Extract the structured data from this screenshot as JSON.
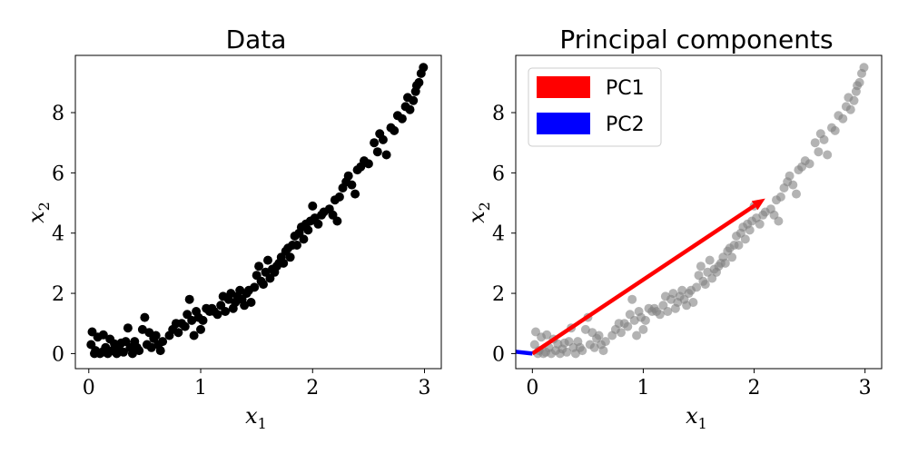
{
  "chart_data": [
    {
      "type": "scatter",
      "title": "Data",
      "xlabel": "x",
      "xlabel_sub": "1",
      "ylabel": "x",
      "ylabel_sub": "2",
      "xlim": [
        -0.12,
        3.15
      ],
      "ylim": [
        -0.5,
        9.9
      ],
      "xticks": [
        0,
        1,
        2,
        3
      ],
      "yticks": [
        0,
        2,
        4,
        6,
        8
      ],
      "grid": false,
      "point_color": "#000000",
      "points": [
        [
          0.02,
          0.3
        ],
        [
          0.03,
          0.72
        ],
        [
          0.05,
          0.0
        ],
        [
          0.06,
          0.1
        ],
        [
          0.08,
          0.55
        ],
        [
          0.1,
          0.0
        ],
        [
          0.12,
          0.05
        ],
        [
          0.13,
          0.62
        ],
        [
          0.15,
          0.2
        ],
        [
          0.17,
          0.0
        ],
        [
          0.19,
          0.48
        ],
        [
          0.21,
          0.1
        ],
        [
          0.23,
          0.32
        ],
        [
          0.25,
          0.0
        ],
        [
          0.27,
          0.15
        ],
        [
          0.29,
          0.35
        ],
        [
          0.31,
          0.05
        ],
        [
          0.33,
          0.4
        ],
        [
          0.35,
          0.85
        ],
        [
          0.37,
          0.2
        ],
        [
          0.39,
          0.0
        ],
        [
          0.41,
          0.4
        ],
        [
          0.43,
          0.2
        ],
        [
          0.45,
          0.1
        ],
        [
          0.48,
          0.8
        ],
        [
          0.5,
          1.2
        ],
        [
          0.52,
          0.3
        ],
        [
          0.54,
          0.7
        ],
        [
          0.56,
          0.2
        ],
        [
          0.58,
          0.5
        ],
        [
          0.6,
          0.6
        ],
        [
          0.62,
          0.3
        ],
        [
          0.64,
          0.1
        ],
        [
          0.66,
          0.4
        ],
        [
          0.72,
          0.6
        ],
        [
          0.75,
          0.8
        ],
        [
          0.78,
          1.0
        ],
        [
          0.8,
          0.7
        ],
        [
          0.83,
          1.0
        ],
        [
          0.86,
          0.9
        ],
        [
          0.88,
          1.3
        ],
        [
          0.9,
          1.8
        ],
        [
          0.92,
          1.1
        ],
        [
          0.94,
          0.6
        ],
        [
          0.96,
          1.4
        ],
        [
          0.98,
          1.2
        ],
        [
          1.0,
          0.8
        ],
        [
          1.02,
          1.1
        ],
        [
          1.05,
          1.5
        ],
        [
          1.08,
          1.4
        ],
        [
          1.1,
          1.5
        ],
        [
          1.12,
          1.4
        ],
        [
          1.15,
          1.3
        ],
        [
          1.18,
          1.6
        ],
        [
          1.2,
          1.9
        ],
        [
          1.22,
          1.4
        ],
        [
          1.25,
          1.8
        ],
        [
          1.27,
          2.0
        ],
        [
          1.29,
          1.5
        ],
        [
          1.31,
          1.7
        ],
        [
          1.33,
          1.9
        ],
        [
          1.35,
          2.1
        ],
        [
          1.37,
          1.8
        ],
        [
          1.39,
          1.6
        ],
        [
          1.41,
          2.0
        ],
        [
          1.43,
          2.1
        ],
        [
          1.45,
          1.7
        ],
        [
          1.48,
          2.2
        ],
        [
          1.5,
          2.6
        ],
        [
          1.52,
          2.9
        ],
        [
          1.54,
          2.4
        ],
        [
          1.56,
          2.3
        ],
        [
          1.58,
          2.7
        ],
        [
          1.6,
          3.1
        ],
        [
          1.62,
          2.5
        ],
        [
          1.64,
          2.8
        ],
        [
          1.66,
          2.7
        ],
        [
          1.68,
          2.9
        ],
        [
          1.7,
          3.0
        ],
        [
          1.72,
          3.2
        ],
        [
          1.74,
          3.0
        ],
        [
          1.76,
          3.4
        ],
        [
          1.78,
          3.5
        ],
        [
          1.8,
          3.2
        ],
        [
          1.82,
          3.6
        ],
        [
          1.84,
          3.9
        ],
        [
          1.86,
          3.6
        ],
        [
          1.88,
          4.0
        ],
        [
          1.9,
          4.2
        ],
        [
          1.92,
          3.8
        ],
        [
          1.94,
          4.3
        ],
        [
          1.96,
          4.1
        ],
        [
          1.98,
          4.4
        ],
        [
          2.0,
          4.9
        ],
        [
          2.02,
          4.5
        ],
        [
          2.05,
          4.3
        ],
        [
          2.08,
          4.6
        ],
        [
          2.1,
          4.7
        ],
        [
          2.15,
          4.8
        ],
        [
          2.18,
          4.6
        ],
        [
          2.2,
          5.1
        ],
        [
          2.22,
          4.4
        ],
        [
          2.24,
          5.2
        ],
        [
          2.27,
          5.5
        ],
        [
          2.3,
          5.7
        ],
        [
          2.32,
          5.9
        ],
        [
          2.35,
          5.6
        ],
        [
          2.38,
          5.3
        ],
        [
          2.4,
          6.1
        ],
        [
          2.43,
          6.2
        ],
        [
          2.46,
          6.4
        ],
        [
          2.5,
          6.3
        ],
        [
          2.55,
          7.0
        ],
        [
          2.58,
          6.7
        ],
        [
          2.6,
          7.3
        ],
        [
          2.63,
          7.1
        ],
        [
          2.66,
          6.6
        ],
        [
          2.7,
          7.5
        ],
        [
          2.73,
          7.4
        ],
        [
          2.76,
          7.9
        ],
        [
          2.8,
          7.8
        ],
        [
          2.83,
          8.2
        ],
        [
          2.85,
          8.5
        ],
        [
          2.87,
          8.1
        ],
        [
          2.9,
          8.4
        ],
        [
          2.92,
          8.7
        ],
        [
          2.95,
          9.0
        ],
        [
          2.97,
          9.3
        ],
        [
          2.99,
          9.5
        ],
        [
          2.93,
          8.9
        ]
      ]
    },
    {
      "type": "scatter",
      "title": "Principal components",
      "xlabel": "x",
      "xlabel_sub": "1",
      "ylabel": "x",
      "ylabel_sub": "2",
      "xlim": [
        -0.15,
        3.15
      ],
      "ylim": [
        -0.5,
        9.9
      ],
      "xticks": [
        0,
        1,
        2,
        3
      ],
      "yticks": [
        0,
        2,
        4,
        6,
        8
      ],
      "grid": false,
      "point_color": "#808080",
      "point_alpha": 0.6,
      "legend_position": "upper-left",
      "legend": [
        {
          "label": "PC1",
          "color": "#ff0000"
        },
        {
          "label": "PC2",
          "color": "#0000ff"
        }
      ],
      "arrows": [
        {
          "name": "PC1",
          "color": "#ff0000",
          "from": [
            0,
            0
          ],
          "to": [
            2.1,
            5.15
          ]
        },
        {
          "name": "PC2",
          "color": "#0000ff",
          "from": [
            0,
            0
          ],
          "to": [
            -0.3,
            0.12
          ]
        }
      ]
    }
  ]
}
